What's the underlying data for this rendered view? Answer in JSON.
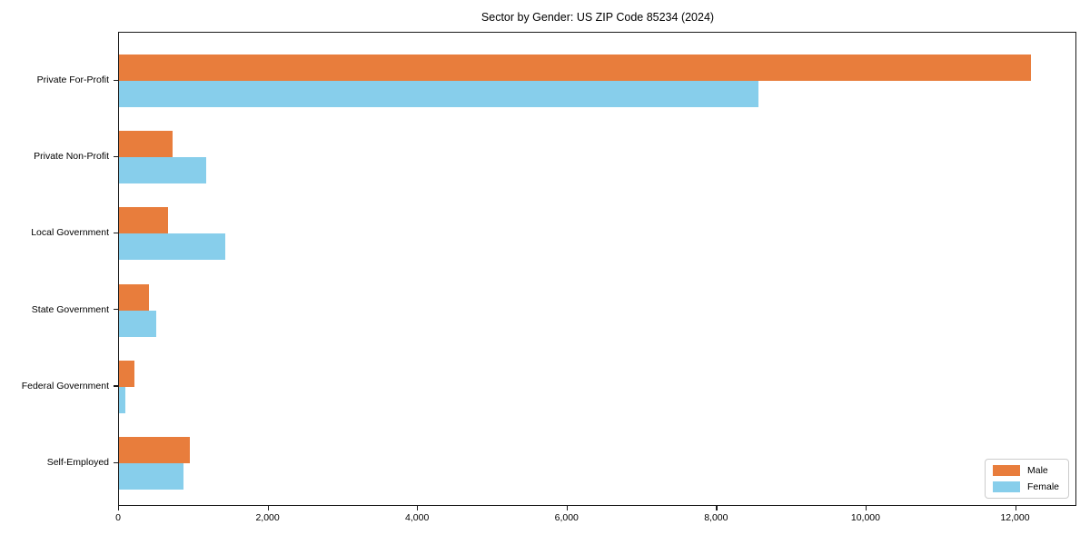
{
  "chart_data": {
    "type": "bar",
    "orientation": "horizontal",
    "title": "Sector by Gender: US ZIP Code 85234 (2024)",
    "categories": [
      "Private For-Profit",
      "Private Non-Profit",
      "Local Government",
      "State Government",
      "Federal Government",
      "Self-Employed"
    ],
    "series": [
      {
        "name": "Male",
        "color": "#e87d3c",
        "values": [
          12200,
          720,
          660,
          400,
          210,
          950
        ]
      },
      {
        "name": "Female",
        "color": "#87ceeb",
        "values": [
          8550,
          1170,
          1420,
          500,
          80,
          860
        ]
      }
    ],
    "xlim": [
      0,
      12820
    ],
    "xticks": [
      0,
      2000,
      4000,
      6000,
      8000,
      10000,
      12000
    ],
    "xtick_labels": [
      "0",
      "2,000",
      "4,000",
      "6,000",
      "8,000",
      "10,000",
      "12,000"
    ],
    "xlabel": "",
    "ylabel": "",
    "legend_position": "lower right",
    "grid": false
  }
}
